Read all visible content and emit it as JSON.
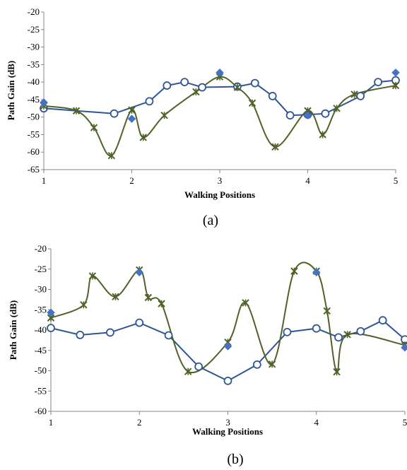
{
  "colors": {
    "blue": "#2f5597",
    "green": "#4f6228",
    "diamond": "#4472c4"
  },
  "chart_data": [
    {
      "type": "line",
      "caption": "(a)",
      "xlabel": "Walking Positions",
      "ylabel": "Path Gain (dB)",
      "xlim": [
        1,
        5
      ],
      "ylim": [
        -65,
        -20
      ],
      "xticks": [
        "1",
        "2",
        "3",
        "4",
        "5"
      ],
      "yticks": [
        "-20",
        "-25",
        "-30",
        "-35",
        "-40",
        "-45",
        "-50",
        "-55",
        "-60",
        "-65"
      ],
      "series": [
        {
          "marker": "circle",
          "style": "straight",
          "points": [
            [
              1.0,
              -47.5
            ],
            [
              1.8,
              -49.0
            ],
            [
              2.2,
              -45.5
            ],
            [
              2.4,
              -41.0
            ],
            [
              2.6,
              -40.0
            ],
            [
              2.8,
              -41.5
            ],
            [
              3.2,
              -41.3
            ],
            [
              3.4,
              -40.3
            ],
            [
              3.6,
              -44.0
            ],
            [
              3.8,
              -49.5
            ],
            [
              4.0,
              -49.3
            ],
            [
              4.2,
              -49.0
            ],
            [
              4.6,
              -44.0
            ],
            [
              4.8,
              -40.0
            ],
            [
              5.0,
              -39.5
            ]
          ]
        },
        {
          "marker": "x",
          "style": "smooth",
          "points": [
            [
              1.0,
              -46.8
            ],
            [
              1.37,
              -48.2
            ],
            [
              1.57,
              -53.0
            ],
            [
              1.77,
              -61.0
            ],
            [
              2.0,
              -48.0
            ],
            [
              2.13,
              -55.8
            ],
            [
              2.37,
              -49.5
            ],
            [
              2.73,
              -42.8
            ],
            [
              3.0,
              -38.5
            ],
            [
              3.2,
              -41.5
            ],
            [
              3.37,
              -46.0
            ],
            [
              3.63,
              -58.5
            ],
            [
              4.0,
              -48.2
            ],
            [
              4.17,
              -55.0
            ],
            [
              4.33,
              -47.5
            ],
            [
              4.53,
              -43.5
            ],
            [
              5.0,
              -41.0
            ]
          ]
        },
        {
          "marker": "diamond",
          "style": "none",
          "points": [
            [
              1.0,
              -45.8
            ],
            [
              2.0,
              -50.5
            ],
            [
              3.0,
              -37.3
            ],
            [
              4.0,
              -49.5
            ],
            [
              5.0,
              -37.3
            ]
          ]
        }
      ]
    },
    {
      "type": "line",
      "caption": "(b)",
      "xlabel": "Walking Positions",
      "ylabel": "Path Gain (dB)",
      "xlim": [
        1,
        5
      ],
      "ylim": [
        -60,
        -20
      ],
      "xticks": [
        "1",
        "2",
        "3",
        "4",
        "5"
      ],
      "yticks": [
        "-20",
        "-25",
        "-30",
        "-35",
        "-40",
        "-45",
        "-50",
        "-55",
        "-60"
      ],
      "series": [
        {
          "marker": "circle",
          "style": "straight",
          "points": [
            [
              1.0,
              -39.5
            ],
            [
              1.33,
              -41.2
            ],
            [
              1.67,
              -40.6
            ],
            [
              2.0,
              -38.2
            ],
            [
              2.33,
              -41.3
            ],
            [
              2.67,
              -49.0
            ],
            [
              3.0,
              -52.5
            ],
            [
              3.33,
              -48.5
            ],
            [
              3.67,
              -40.5
            ],
            [
              4.0,
              -39.6
            ],
            [
              4.25,
              -41.8
            ],
            [
              4.5,
              -40.3
            ],
            [
              4.75,
              -37.6
            ],
            [
              5.0,
              -42.3
            ]
          ]
        },
        {
          "marker": "x",
          "style": "smooth",
          "points": [
            [
              1.0,
              -37.0
            ],
            [
              1.37,
              -33.8
            ],
            [
              1.47,
              -26.7
            ],
            [
              1.73,
              -31.8
            ],
            [
              2.0,
              -25.2
            ],
            [
              2.1,
              -32.0
            ],
            [
              2.25,
              -33.5
            ],
            [
              2.55,
              -50.2
            ],
            [
              3.0,
              -43.0
            ],
            [
              3.2,
              -33.3
            ],
            [
              3.5,
              -48.4
            ],
            [
              3.75,
              -25.5
            ],
            [
              4.0,
              -25.5
            ],
            [
              4.12,
              -35.3
            ],
            [
              4.23,
              -50.3
            ],
            [
              4.35,
              -41.1
            ],
            [
              5.0,
              -43.7
            ]
          ]
        },
        {
          "marker": "diamond",
          "style": "none",
          "points": [
            [
              1.0,
              -35.7
            ],
            [
              2.0,
              -25.8
            ],
            [
              3.0,
              -44.0
            ],
            [
              4.0,
              -25.8
            ],
            [
              5.0,
              -44.3
            ]
          ]
        }
      ]
    }
  ]
}
